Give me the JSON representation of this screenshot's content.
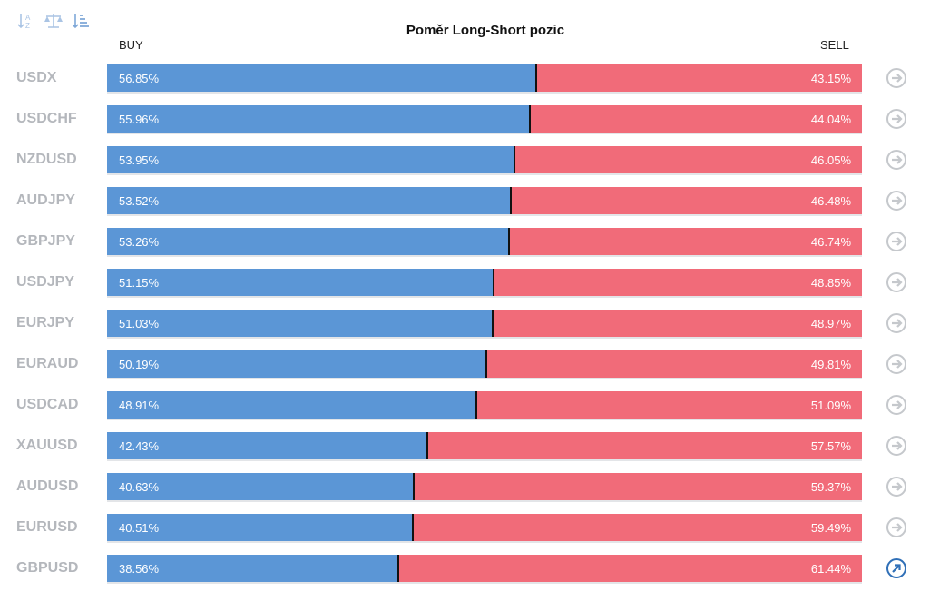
{
  "title": "Poměr Long-Short pozic",
  "headers": {
    "buy": "BUY",
    "sell": "SELL"
  },
  "toolbar": [
    {
      "name": "sort-alpha-icon"
    },
    {
      "name": "balance-scale-icon"
    },
    {
      "name": "sort-numeric-icon"
    }
  ],
  "colors": {
    "buy": "#5b96d6",
    "sell": "#f16b79",
    "symbol": "#b4b7bc",
    "icon_inactive": "#c5c8cc",
    "icon_active": "#2f6fb7"
  },
  "chart_data": {
    "type": "bar",
    "stacked": true,
    "orientation": "horizontal",
    "categories": [
      "USDX",
      "USDCHF",
      "NZDUSD",
      "AUDJPY",
      "GBPJPY",
      "USDJPY",
      "EURJPY",
      "EURAUD",
      "USDCAD",
      "XAUUSD",
      "AUDUSD",
      "EURUSD",
      "GBPUSD"
    ],
    "series": [
      {
        "name": "BUY",
        "values": [
          56.85,
          55.96,
          53.95,
          53.52,
          53.26,
          51.15,
          51.03,
          50.19,
          48.91,
          42.43,
          40.63,
          40.51,
          38.56
        ]
      },
      {
        "name": "SELL",
        "values": [
          43.15,
          44.04,
          46.05,
          46.48,
          46.74,
          48.85,
          48.97,
          49.81,
          51.09,
          57.57,
          59.37,
          59.49,
          61.44
        ]
      }
    ],
    "labels_buy": [
      "56.85%",
      "55.96%",
      "53.95%",
      "53.52%",
      "53.26%",
      "51.15%",
      "51.03%",
      "50.19%",
      "48.91%",
      "42.43%",
      "40.63%",
      "40.51%",
      "38.56%"
    ],
    "labels_sell": [
      "43.15%",
      "44.04%",
      "46.05%",
      "46.48%",
      "46.74%",
      "48.85%",
      "48.97%",
      "49.81%",
      "51.09%",
      "57.57%",
      "59.37%",
      "59.49%",
      "61.44%"
    ],
    "xlim": [
      0,
      100
    ],
    "row_icons": [
      "arrow-right-icon",
      "arrow-right-icon",
      "arrow-right-icon",
      "arrow-right-icon",
      "arrow-right-icon",
      "arrow-right-icon",
      "arrow-right-icon",
      "arrow-right-icon",
      "arrow-right-icon",
      "arrow-right-icon",
      "arrow-right-icon",
      "arrow-right-icon",
      "external-link-icon"
    ]
  }
}
